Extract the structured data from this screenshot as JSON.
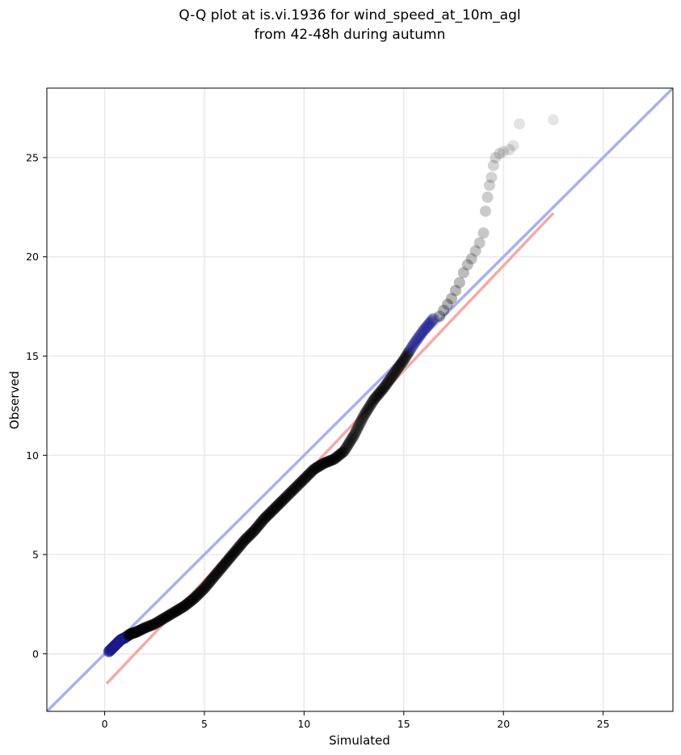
{
  "chart_data": {
    "type": "scatter",
    "title": "Q-Q plot at is.vi.1936 for wind_speed_at_10m_agl",
    "subtitle": "from 42-48h during autumn",
    "xlabel": "Simulated",
    "ylabel": "Observed",
    "xlim": [
      -2.9,
      28.5
    ],
    "ylim": [
      -2.9,
      28.5
    ],
    "xticks": [
      "0",
      "5",
      "10",
      "15",
      "20",
      "25"
    ],
    "yticks": [
      "0",
      "5",
      "10",
      "15",
      "20",
      "25"
    ],
    "grid": true,
    "colors": {
      "points": "#000000",
      "points_highlight_low": "#1a1a8c",
      "points_highlight_mid": "#8c1a1a",
      "identity_line": "#aab0f2",
      "fit_line": "#f4aaaa",
      "grid": "#e6e6e6"
    },
    "identity_line": {
      "x": [
        -2.9,
        28.5
      ],
      "y": [
        -2.9,
        28.5
      ]
    },
    "fit_line": {
      "x": [
        0.1,
        22.5
      ],
      "y": [
        -1.5,
        22.2
      ]
    },
    "quantile_curve": {
      "x": [
        0.2,
        0.4,
        0.6,
        0.8,
        1.0,
        1.3,
        1.6,
        2.0,
        2.5,
        3.0,
        3.5,
        4.0,
        4.5,
        5.0,
        5.5,
        6.0,
        6.5,
        7.0,
        7.5,
        8.0,
        8.5,
        9.0,
        9.5,
        10.0,
        10.5,
        11.0,
        11.5,
        12.0,
        12.5,
        13.0,
        13.5,
        14.0,
        14.5,
        15.0,
        15.5,
        16.0,
        16.5
      ],
      "y": [
        0.1,
        0.3,
        0.5,
        0.7,
        0.8,
        1.0,
        1.1,
        1.3,
        1.5,
        1.8,
        2.1,
        2.4,
        2.8,
        3.3,
        3.9,
        4.5,
        5.1,
        5.7,
        6.2,
        6.8,
        7.3,
        7.8,
        8.3,
        8.8,
        9.3,
        9.6,
        9.8,
        10.2,
        11.0,
        12.0,
        12.8,
        13.4,
        14.1,
        14.8,
        15.6,
        16.3,
        16.9
      ]
    },
    "tail_points": {
      "x": [
        16.8,
        17.0,
        17.2,
        17.4,
        17.6,
        17.8,
        18.0,
        18.2,
        18.4,
        18.6,
        18.8,
        19.0,
        19.1,
        19.2,
        19.3,
        19.4,
        19.5,
        19.6,
        19.8,
        20.0,
        20.3,
        20.5,
        20.8,
        22.5
      ],
      "y": [
        17.0,
        17.3,
        17.6,
        17.9,
        18.3,
        18.7,
        19.2,
        19.6,
        19.9,
        20.3,
        20.7,
        21.2,
        22.3,
        23.0,
        23.6,
        24.0,
        24.6,
        25.0,
        25.2,
        25.3,
        25.4,
        25.6,
        26.7,
        26.9
      ]
    }
  }
}
